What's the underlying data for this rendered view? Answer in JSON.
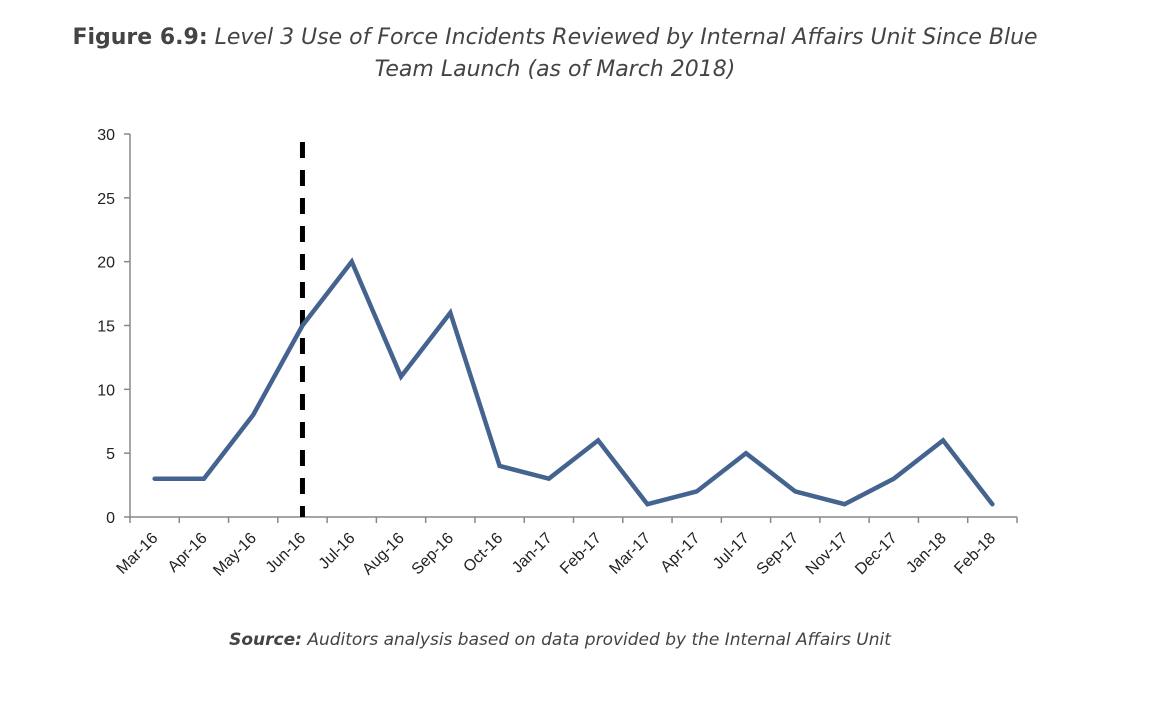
{
  "title": {
    "lead": "Figure 6.9:",
    "rest_line1": " Level 3 Use of Force Incidents Reviewed by Internal Affairs Unit Since Blue",
    "rest_line2": "Team Launch (as of March 2018)"
  },
  "source": {
    "label": "Source:",
    "text": " Auditors analysis based on data provided by the Internal Affairs Unit"
  },
  "chart_data": {
    "type": "line",
    "title": "Figure 6.9: Level 3 Use of Force Incidents Reviewed by Internal Affairs Unit Since Blue Team Launch (as of March 2018)",
    "xlabel": "",
    "ylabel": "",
    "categories": [
      "Mar-16",
      "Apr-16",
      "May-16",
      "Jun-16",
      "Jul-16",
      "Aug-16",
      "Sep-16",
      "Oct-16",
      "Jan-17",
      "Feb-17",
      "Mar-17",
      "Apr-17",
      "Jul-17",
      "Sep-17",
      "Nov-17",
      "Dec-17",
      "Jan-18",
      "Feb-18"
    ],
    "series": [
      {
        "name": "Level 3 Use of Force Incidents",
        "color": "#44648f",
        "values": [
          3,
          3,
          8,
          15,
          20,
          11,
          16,
          4,
          3,
          6,
          1,
          2,
          5,
          2,
          1,
          3,
          6,
          1
        ]
      }
    ],
    "yticks": [
      0,
      5,
      10,
      15,
      20,
      25,
      30
    ],
    "ylim": [
      0,
      30
    ],
    "grid": false,
    "legend": "none",
    "annotations": [
      {
        "type": "vertical-dashed-line",
        "at_category": "Jun-16",
        "meaning": "Blue Team launch",
        "color": "#000000"
      }
    ]
  }
}
